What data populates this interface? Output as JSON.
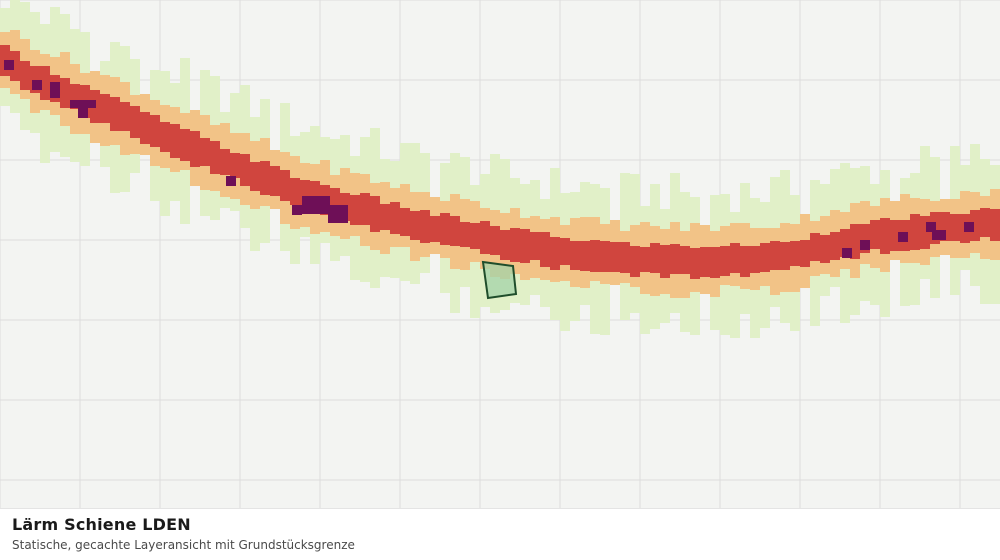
{
  "map": {
    "layer_title": "Lärm Schiene LDEN",
    "layer_subtitle": "Statische, gecachte Layeransicht mit Grundstücksgrenze",
    "colors": {
      "background": "#f3f4f2",
      "grid": "#dcdcdc",
      "noise_low": "#e1f0c8",
      "noise_mid": "#f2c387",
      "noise_high": "#d0453e",
      "noise_extreme": "#6e0f57",
      "parcel_fill": "#a3d3a8",
      "parcel_stroke": "#1f4d2b"
    }
  }
}
